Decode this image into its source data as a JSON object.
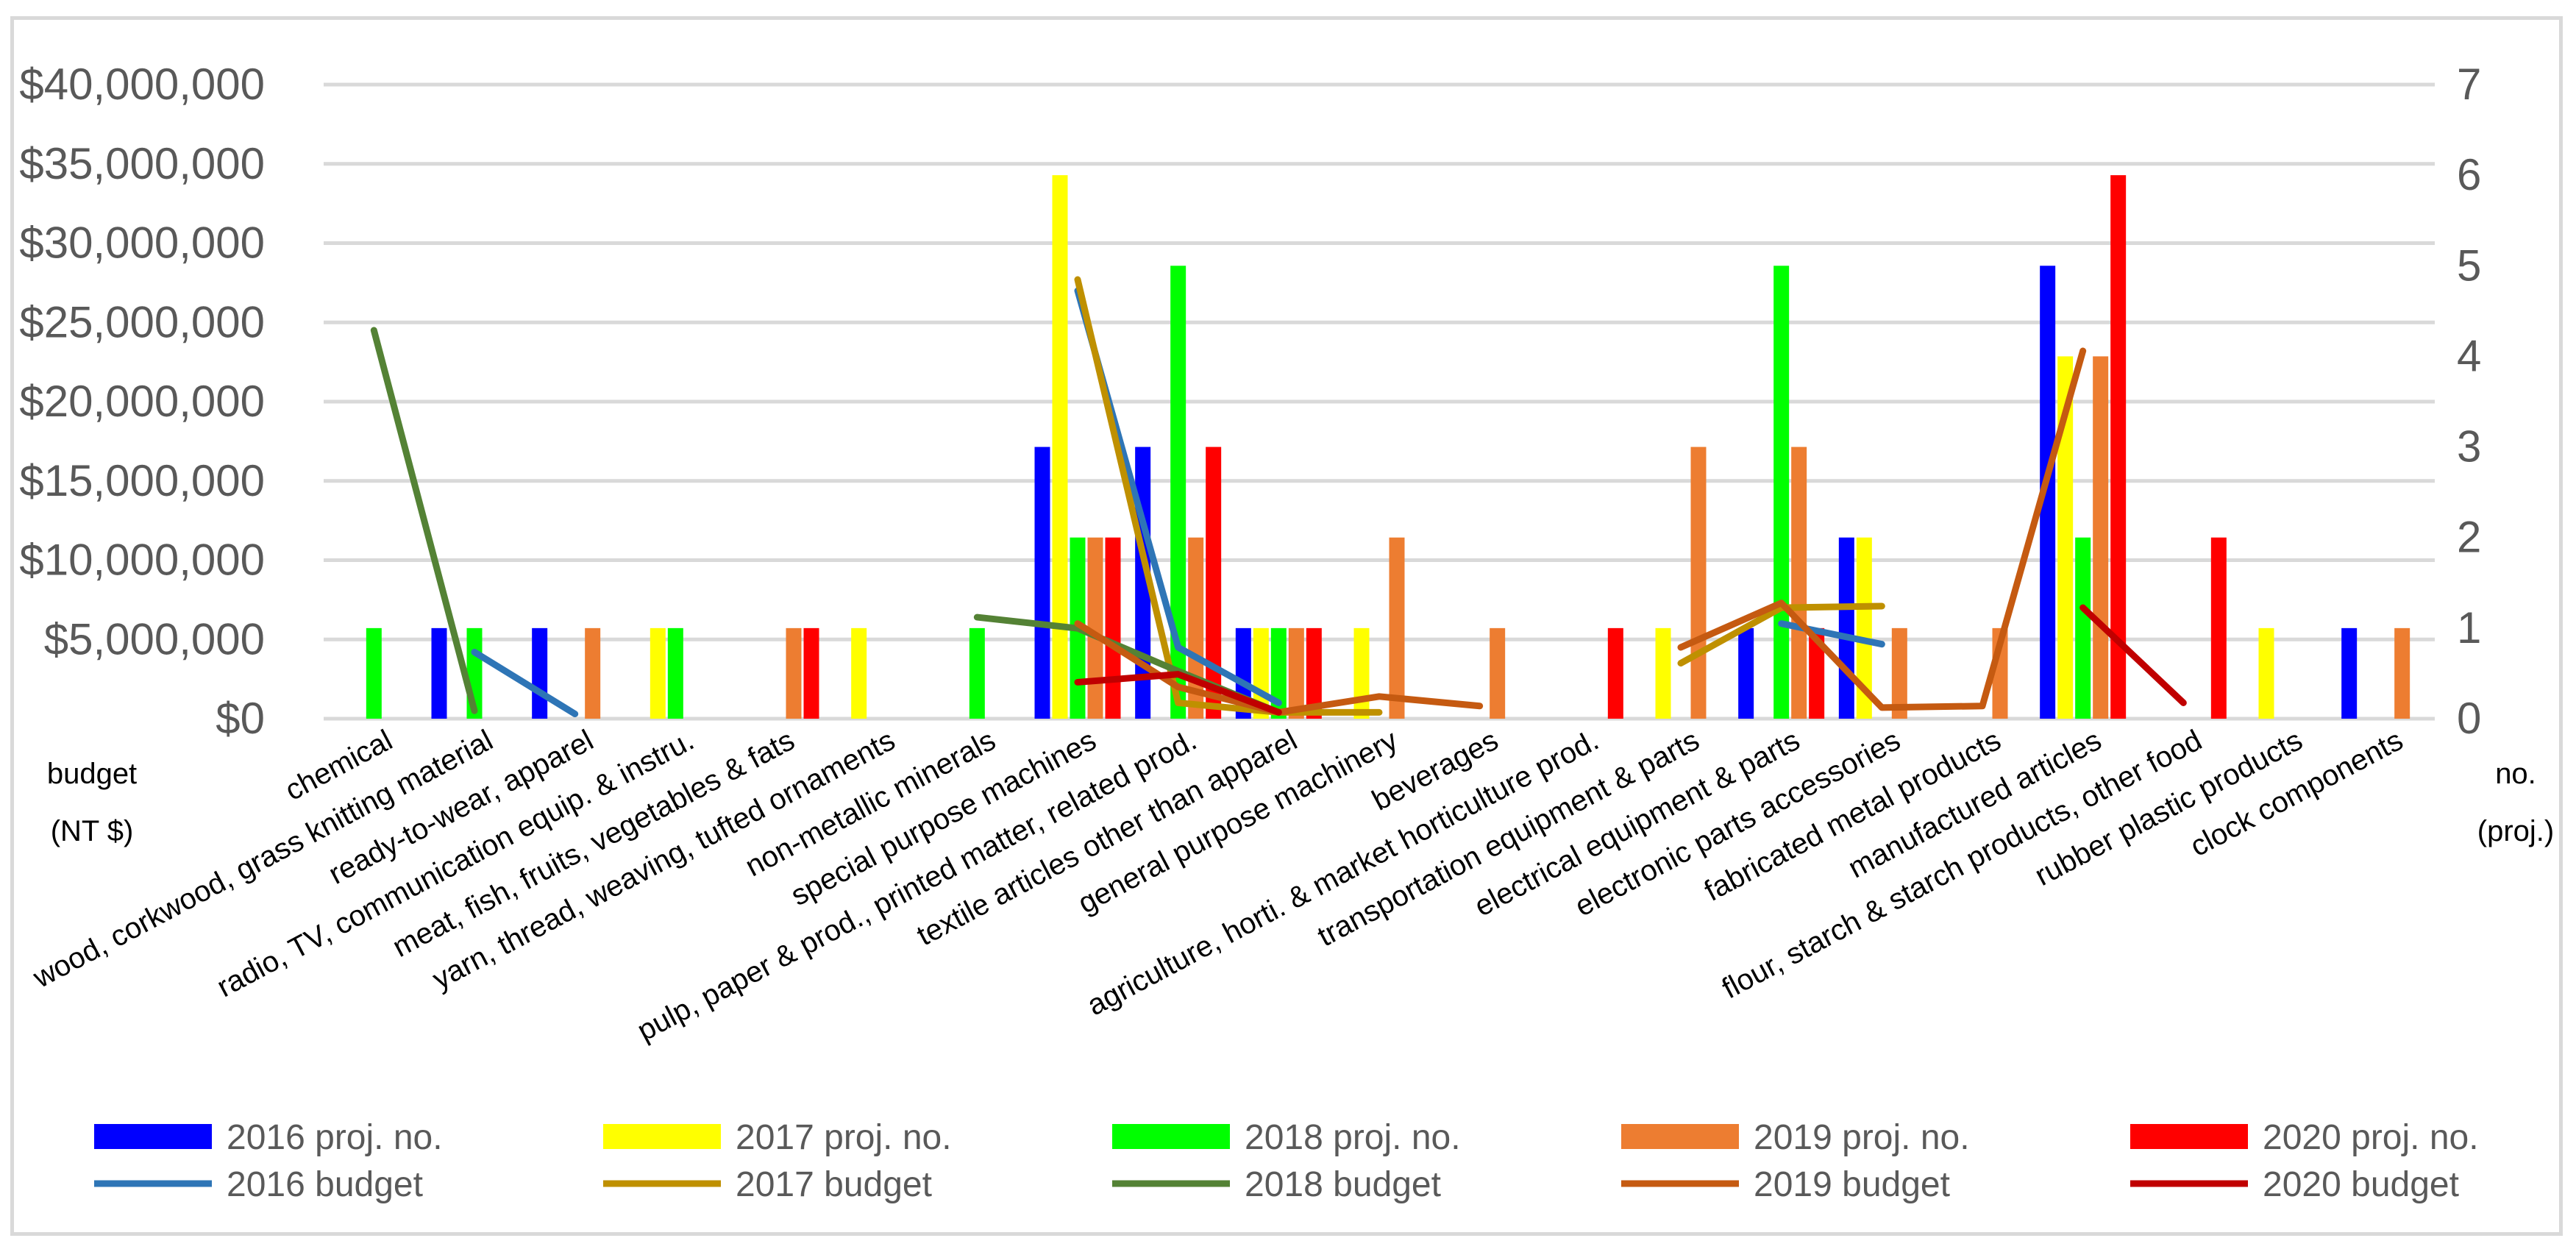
{
  "chart_data": {
    "type": "bar",
    "title": "",
    "left_axis_title": [
      "budget",
      "(NT $)"
    ],
    "right_axis_title": [
      "no.",
      "(proj.)"
    ],
    "left_axis": {
      "min": 0,
      "max": 40000000,
      "step": 5000000,
      "tick_labels": [
        "$0",
        "$5,000,000",
        "$10,000,000",
        "$15,000,000",
        "$20,000,000",
        "$25,000,000",
        "$30,000,000",
        "$35,000,000",
        "$40,000,000"
      ]
    },
    "right_axis": {
      "min": 0,
      "max": 7,
      "step": 1,
      "tick_labels": [
        "0",
        "1",
        "2",
        "3",
        "4",
        "5",
        "6",
        "7"
      ]
    },
    "grid": true,
    "categories": [
      "chemical",
      "wood, corkwood, grass knitting material",
      "ready-to-wear, apparel",
      "radio, TV, communication equip. & instru.",
      "meat, fish, fruits, vegetables & fats",
      "yarn, thread, weaving, tufted ornaments",
      "non-metallic minerals",
      "special purpose machines",
      "pulp, paper & prod., printed matter, related prod.",
      "textile articles other than apparel",
      "general purpose machinery",
      "beverages",
      "agriculture, horti. & market horticulture prod.",
      "transportation equipment & parts",
      "electrical equipment & parts",
      "electronic parts accessories",
      "fabricated metal products",
      "manufactured articles",
      "flour, starch & starch products, other food",
      "rubber plastic products",
      "clock components"
    ],
    "bar_series": [
      {
        "name": "2016 proj. no.",
        "color": "#0000ff",
        "values": [
          null,
          1,
          1,
          null,
          null,
          null,
          null,
          3,
          3,
          1,
          null,
          null,
          null,
          null,
          1,
          2,
          null,
          5,
          null,
          null,
          1
        ]
      },
      {
        "name": "2017 proj. no.",
        "color": "#ffff00",
        "values": [
          null,
          null,
          null,
          1,
          null,
          1,
          null,
          6,
          null,
          1,
          1,
          null,
          null,
          1,
          null,
          2,
          null,
          4,
          null,
          1,
          null
        ]
      },
      {
        "name": "2018 proj. no.",
        "color": "#00ff00",
        "values": [
          1,
          1,
          null,
          1,
          null,
          null,
          1,
          2,
          5,
          1,
          null,
          null,
          null,
          null,
          5,
          null,
          null,
          2,
          null,
          null,
          null
        ]
      },
      {
        "name": "2019 proj. no.",
        "color": "#ed7d31",
        "values": [
          null,
          null,
          1,
          null,
          1,
          null,
          null,
          2,
          2,
          1,
          2,
          1,
          null,
          3,
          3,
          1,
          1,
          4,
          null,
          null,
          1
        ]
      },
      {
        "name": "2020 proj. no.",
        "color": "#ff0000",
        "values": [
          null,
          null,
          null,
          null,
          1,
          null,
          null,
          2,
          3,
          1,
          null,
          null,
          1,
          null,
          1,
          null,
          null,
          6,
          2,
          null,
          null
        ]
      }
    ],
    "line_series": [
      {
        "name": "2016 budget",
        "color": "#2e75b6",
        "values": [
          null,
          4200000,
          300000,
          null,
          null,
          null,
          null,
          27000000,
          4500000,
          1000000,
          null,
          null,
          null,
          null,
          6000000,
          4700000,
          null,
          null,
          null,
          null,
          null
        ]
      },
      {
        "name": "2017 budget",
        "color": "#bf9000",
        "values": [
          null,
          null,
          null,
          null,
          null,
          null,
          null,
          27700000,
          1000000,
          400000,
          400000,
          null,
          null,
          3500000,
          7000000,
          7100000,
          null,
          null,
          null,
          null,
          null
        ]
      },
      {
        "name": "2018 budget",
        "color": "#548235",
        "values": [
          24500000,
          500000,
          null,
          null,
          null,
          null,
          6400000,
          5700000,
          3000000,
          400000,
          null,
          null,
          null,
          null,
          null,
          null,
          null,
          null,
          null,
          null,
          null
        ]
      },
      {
        "name": "2019 budget",
        "color": "#c55a11",
        "values": [
          null,
          null,
          null,
          null,
          null,
          null,
          null,
          6000000,
          2000000,
          400000,
          1400000,
          800000,
          null,
          4500000,
          7300000,
          700000,
          800000,
          23200000,
          null,
          null,
          null
        ]
      },
      {
        "name": "2020 budget",
        "color": "#c00000",
        "values": [
          null,
          null,
          null,
          null,
          null,
          null,
          null,
          2300000,
          2800000,
          400000,
          null,
          null,
          null,
          null,
          null,
          null,
          null,
          7000000,
          1000000,
          null,
          null
        ]
      }
    ],
    "legend_position": "bottom"
  }
}
